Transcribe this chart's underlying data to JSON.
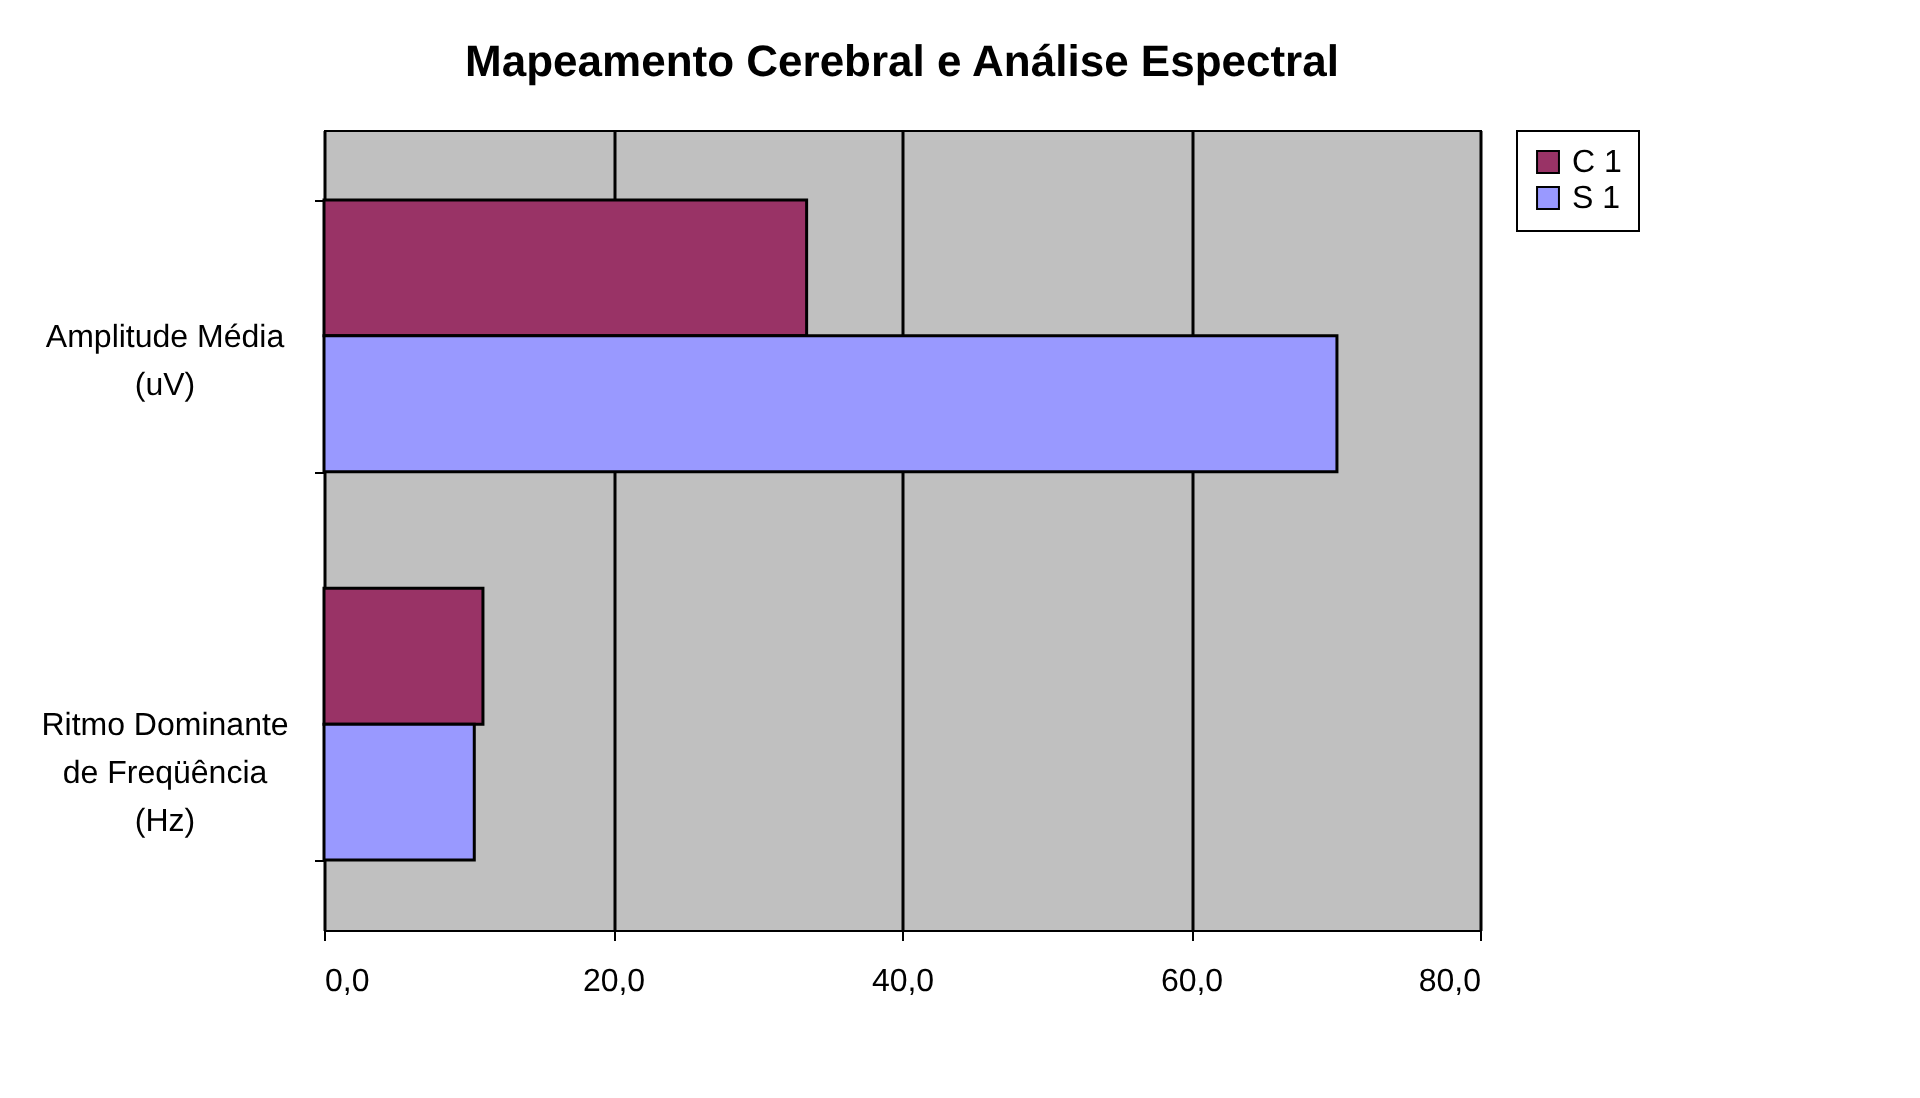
{
  "chart_data": {
    "type": "bar",
    "orientation": "horizontal",
    "title": "Mapeamento Cerebral e Análise Espectral",
    "categories": [
      "Amplitude Média\n(uV)",
      "Ritmo Dominante\nde Freqüência\n(Hz)"
    ],
    "series": [
      {
        "name": "C 1",
        "color": "#993366",
        "values": [
          33.4,
          11.0
        ]
      },
      {
        "name": "S 1",
        "color": "#9999ff",
        "values": [
          70.1,
          10.4
        ]
      }
    ],
    "xlim": [
      0,
      80
    ],
    "xticks": [
      {
        "value": 0,
        "label": "0,0"
      },
      {
        "value": 20,
        "label": "20,0"
      },
      {
        "value": 40,
        "label": "40,0"
      },
      {
        "value": 60,
        "label": "60,0"
      },
      {
        "value": 80,
        "label": "80,0"
      }
    ],
    "grid": "x",
    "legend": "right"
  }
}
